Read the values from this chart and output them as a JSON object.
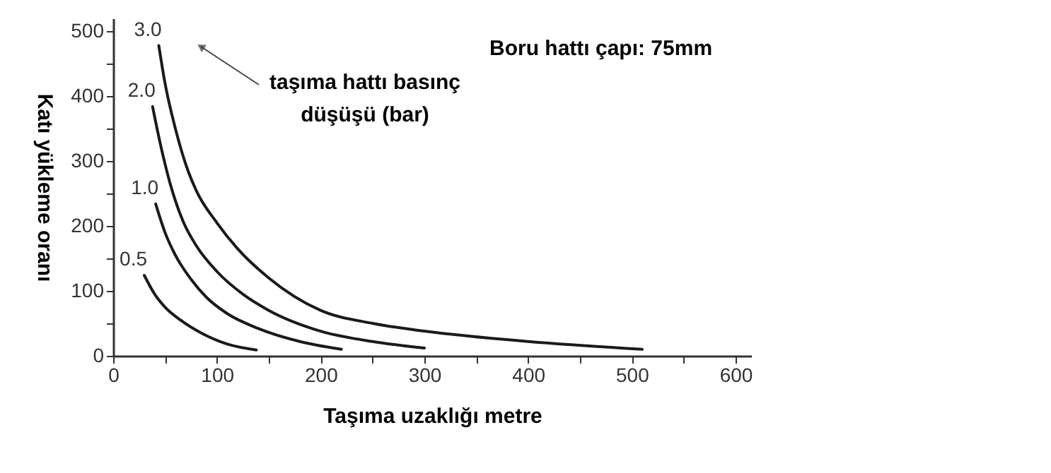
{
  "chart_data": {
    "type": "line",
    "xlabel": "Taşıma uzaklığı metre",
    "ylabel": "Katı yükleme oranı",
    "xlim": [
      0,
      615
    ],
    "xticks": [
      0,
      {
        "value": 50,
        "label": null
      },
      100,
      {
        "value": 150,
        "label": null
      },
      200,
      {
        "value": 250,
        "label": null
      },
      300,
      {
        "value": 350,
        "label": null
      },
      400,
      {
        "value": 450,
        "label": null
      },
      500,
      {
        "value": 550,
        "label": null
      },
      600
    ],
    "ylim": [
      0,
      520
    ],
    "yticks": [
      0,
      {
        "value": 50,
        "label": null
      },
      100,
      {
        "value": 150,
        "label": null
      },
      200,
      {
        "value": 250,
        "label": null
      },
      300,
      {
        "value": 350,
        "label": null
      },
      400,
      {
        "value": 450,
        "label": null
      },
      500
    ],
    "grid": false,
    "marker": "none",
    "line_style": "solid",
    "annotations": [
      "taşıma hattı basınç düşüşü (bar)",
      "Boru hattı çapı: 75mm"
    ],
    "series": [
      {
        "name": "3.0",
        "color": "#1a1a1a",
        "x": [
          44,
          50,
          60,
          70,
          80,
          100,
          120,
          150,
          200,
          250,
          300,
          400,
          510
        ],
        "values": [
          478,
          420,
          350,
          295,
          255,
          205,
          165,
          120,
          70,
          50,
          38,
          22,
          10
        ]
      },
      {
        "name": "2.0",
        "color": "#1a1a1a",
        "x": [
          38,
          45,
          55,
          68,
          80,
          100,
          125,
          150,
          200,
          250,
          300
        ],
        "values": [
          384,
          330,
          265,
          205,
          170,
          130,
          95,
          70,
          38,
          22,
          12
        ]
      },
      {
        "name": "1.0",
        "color": "#1a1a1a",
        "x": [
          41,
          50,
          60,
          75,
          90,
          110,
          140,
          180,
          220
        ],
        "values": [
          234,
          190,
          155,
          118,
          90,
          65,
          42,
          22,
          10
        ]
      },
      {
        "name": "0.5",
        "color": "#1a1a1a",
        "x": [
          30,
          40,
          50,
          65,
          85,
          110,
          138
        ],
        "values": [
          124,
          95,
          75,
          55,
          35,
          18,
          9
        ]
      }
    ]
  }
}
